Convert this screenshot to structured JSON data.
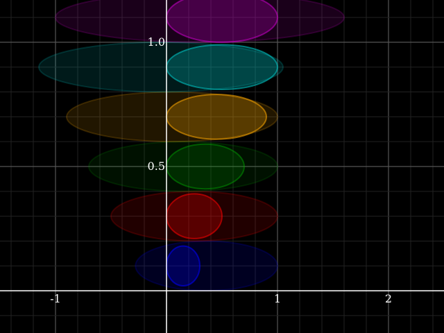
{
  "chart_data": {
    "type": "scatter",
    "title": "",
    "xlabel": "",
    "ylabel": "",
    "xlim": [
      -1.5,
      2.5
    ],
    "ylim": [
      -0.17,
      1.17
    ],
    "grid": true,
    "minor_grid": true,
    "x_ticks": [
      {
        "value": -1,
        "label": "-1"
      },
      {
        "value": 1,
        "label": "1"
      },
      {
        "value": 2,
        "label": "2"
      }
    ],
    "y_ticks": [
      {
        "value": 0.5,
        "label": "0.5"
      },
      {
        "value": 1.0,
        "label": "1.0"
      }
    ],
    "series": [
      {
        "color": "#0000ff",
        "row_y": 0.1,
        "ellipses": [
          {
            "cx": 0.36,
            "cy": 0.1,
            "rx": 0.64,
            "ry": 0.1,
            "fill_opacity": 0.13,
            "stroke_opacity": 0.18
          },
          {
            "cx": 0.15,
            "cy": 0.1,
            "rx": 0.15,
            "ry": 0.08,
            "fill_opacity": 0.25,
            "stroke_opacity": 0.55
          }
        ]
      },
      {
        "color": "#ff0000",
        "row_y": 0.3,
        "ellipses": [
          {
            "cx": 0.25,
            "cy": 0.3,
            "rx": 0.75,
            "ry": 0.1,
            "fill_opacity": 0.13,
            "stroke_opacity": 0.18
          },
          {
            "cx": 0.25,
            "cy": 0.3,
            "rx": 0.25,
            "ry": 0.09,
            "fill_opacity": 0.25,
            "stroke_opacity": 0.55
          }
        ]
      },
      {
        "color": "#00aa00",
        "row_y": 0.5,
        "ellipses": [
          {
            "cx": 0.15,
            "cy": 0.5,
            "rx": 0.85,
            "ry": 0.1,
            "fill_opacity": 0.1,
            "stroke_opacity": 0.16
          },
          {
            "cx": 0.35,
            "cy": 0.5,
            "rx": 0.35,
            "ry": 0.09,
            "fill_opacity": 0.18,
            "stroke_opacity": 0.45
          }
        ]
      },
      {
        "color": "#ffaa00",
        "row_y": 0.7,
        "ellipses": [
          {
            "cx": 0.05,
            "cy": 0.7,
            "rx": 0.95,
            "ry": 0.1,
            "fill_opacity": 0.13,
            "stroke_opacity": 0.18
          },
          {
            "cx": 0.45,
            "cy": 0.7,
            "rx": 0.45,
            "ry": 0.09,
            "fill_opacity": 0.25,
            "stroke_opacity": 0.55
          }
        ]
      },
      {
        "color": "#00cccc",
        "row_y": 0.9,
        "ellipses": [
          {
            "cx": -0.05,
            "cy": 0.9,
            "rx": 1.1,
            "ry": 0.1,
            "fill_opacity": 0.13,
            "stroke_opacity": 0.18
          },
          {
            "cx": 0.5,
            "cy": 0.9,
            "rx": 0.5,
            "ry": 0.09,
            "fill_opacity": 0.25,
            "stroke_opacity": 0.55
          }
        ]
      },
      {
        "color": "#cc00cc",
        "row_y": 1.1,
        "ellipses": [
          {
            "cx": 0.3,
            "cy": 1.1,
            "rx": 1.3,
            "ry": 0.1,
            "fill_opacity": 0.13,
            "stroke_opacity": 0.18
          },
          {
            "cx": 0.5,
            "cy": 1.1,
            "rx": 0.5,
            "ry": 0.1,
            "fill_opacity": 0.25,
            "stroke_opacity": 0.55
          }
        ]
      }
    ]
  }
}
